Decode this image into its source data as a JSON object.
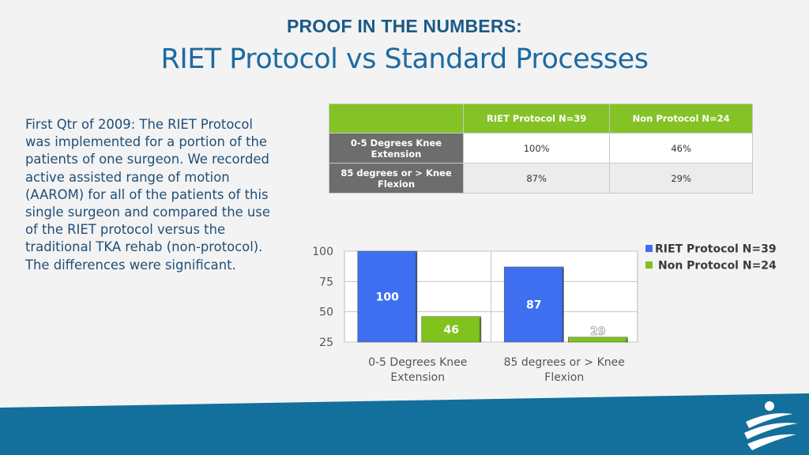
{
  "title": {
    "kicker": "PROOF IN THE NUMBERS:",
    "headline": "RIET Protocol vs Standard Processes"
  },
  "body_text": "First Qtr of 2009:  The RIET Protocol was implemented for a portion of the patients of one surgeon.  We recorded active assisted range of motion (AAROM) for all of the patients of this single surgeon and compared the use of the RIET protocol versus the traditional TKA rehab (non-protocol).  The differences were significant.",
  "table": {
    "headers": [
      "RIET Protocol  N=39",
      "Non Protocol  N=24"
    ],
    "rows": [
      {
        "label_line1": "0-5 Degrees Knee",
        "label_line2": "Extension",
        "values": [
          "100%",
          "46%"
        ]
      },
      {
        "label_line1": "85 degrees or > Knee",
        "label_line2": "Flexion",
        "values": [
          "87%",
          "29%"
        ]
      }
    ]
  },
  "colors": {
    "series1": "#3e6ff0",
    "series2": "#7fc31c",
    "band": "#136f9c"
  },
  "chart_data": {
    "type": "bar",
    "categories": [
      [
        "0-5 Degrees Knee",
        "Extension"
      ],
      [
        "85 degrees or > Knee",
        "Flexion"
      ]
    ],
    "series": [
      {
        "name": "RIET Protocol  N=39",
        "values": [
          100,
          87
        ]
      },
      {
        "name": "Non Protocol  N=24",
        "values": [
          46,
          29
        ]
      }
    ],
    "yticks": [
      "100",
      "75",
      "50",
      "25"
    ],
    "ylim": [
      25,
      100
    ],
    "legend_position": "right",
    "title": "",
    "xlabel": "",
    "ylabel": ""
  }
}
